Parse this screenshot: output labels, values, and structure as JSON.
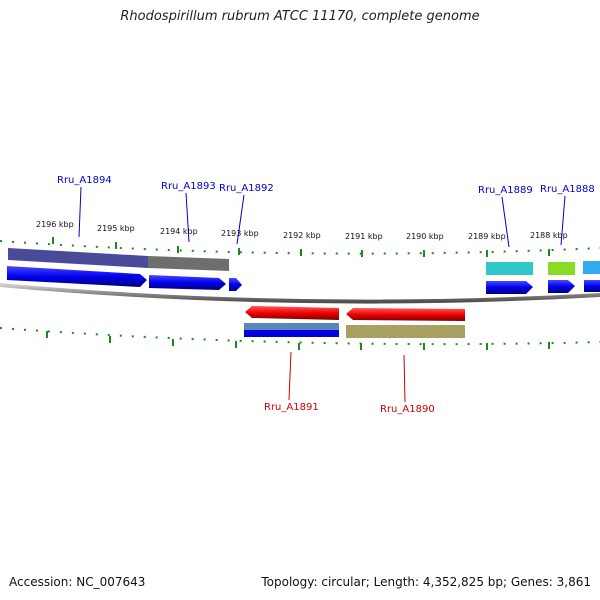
{
  "title": "Rhodospirillum rubrum ATCC 11170, complete genome",
  "footer": {
    "accession": "Accession: NC_007643",
    "summary": "Topology: circular; Length: 4,352,825 bp; Genes: 3,861"
  },
  "ticks": [
    "2196 kbp",
    "2195 kbp",
    "2194 kbp",
    "2193 kbp",
    "2192 kbp",
    "2191 kbp",
    "2190 kbp",
    "2189 kbp",
    "2188 kbp"
  ],
  "genes_top": [
    {
      "name": "Rru_A1894",
      "color": "#0000cc"
    },
    {
      "name": "Rru_A1893",
      "color": "#0000cc"
    },
    {
      "name": "Rru_A1892",
      "color": "#0000cc"
    },
    {
      "name": "Rru_A1889",
      "color": "#0000cc"
    },
    {
      "name": "Rru_A1888",
      "color": "#0000cc"
    }
  ],
  "genes_bottom": [
    {
      "name": "Rru_A1891",
      "color": "#cc0000"
    },
    {
      "name": "Rru_A1890",
      "color": "#cc0000"
    }
  ],
  "colors": {
    "forward_cds": "#0000ee",
    "reverse_cds": "#ee0000",
    "tick": "#1a8a1a",
    "backbone": "#888888",
    "cog_purple": "#4a4a9a",
    "cog_gray": "#6e6e6e",
    "cog_cyan": "#2ec8c8",
    "cog_lime": "#88dd22",
    "cog_lightblue": "#33aaee",
    "cog_khaki": "#a8a060",
    "cog_steel": "#5a86b8"
  }
}
